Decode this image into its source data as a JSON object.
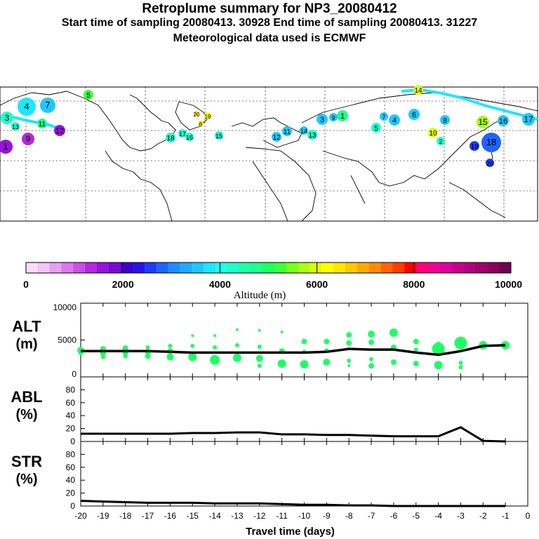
{
  "header": {
    "title": "Retroplume summary for NP3_20080412",
    "subtitle": "Start time of sampling 20080413. 30928     End time of sampling 20080413. 31227",
    "met": "Meteorological data used is ECMWF"
  },
  "colorbar": {
    "title": "Altitude (m)",
    "tick_labels": [
      "0",
      "2000",
      "4000",
      "6000",
      "8000",
      "10000"
    ],
    "colors": [
      "#fadcfa",
      "#f5c3f5",
      "#e6a0f0",
      "#dc78eb",
      "#c850e6",
      "#b428e1",
      "#9614dc",
      "#780ad7",
      "#3c00cd",
      "#2814e6",
      "#1e3cf5",
      "#1e64fa",
      "#1e8cff",
      "#1eaaff",
      "#1ec8ff",
      "#1ee6ff",
      "#1effe6",
      "#1effc8",
      "#1effaa",
      "#1eff8c",
      "#1eff64",
      "#3cff3c",
      "#78ff1e",
      "#aaff14",
      "#dcff0a",
      "#ffff00",
      "#ffe600",
      "#ffc800",
      "#ffaa00",
      "#ff8c00",
      "#ff6400",
      "#ff3c00",
      "#ff0000",
      "#ff0078",
      "#f00096",
      "#dc00a0",
      "#c8008c",
      "#b4007d",
      "#a0006e",
      "#8c005f",
      "#6e0050"
    ]
  },
  "map": {
    "point_labels": [
      "5",
      "4",
      "7",
      "3",
      "1",
      "9",
      "11",
      "12",
      "13",
      "14",
      "15",
      "16",
      "17",
      "18",
      "19",
      "20",
      "6",
      "8",
      "10",
      "2"
    ]
  },
  "chart_data": [
    {
      "type": "scatter",
      "name": "ALT",
      "ylabel": "ALT",
      "yunit": "(m)",
      "x": [
        -20,
        -19,
        -18,
        -17,
        -16,
        -15,
        -14,
        -13,
        -12,
        -11,
        -10,
        -9,
        -8,
        -7,
        -6,
        -5,
        -4,
        -3,
        -2,
        -1
      ],
      "ylim": [
        0,
        10000
      ],
      "ytick_labels": [
        "10000",
        "5000",
        "0"
      ],
      "line_values": [
        3500,
        3500,
        3500,
        3500,
        3400,
        3300,
        3300,
        3300,
        3300,
        3300,
        3300,
        3400,
        3800,
        3700,
        3700,
        3300,
        3000,
        3500,
        4200,
        4300
      ],
      "scatter": [
        {
          "x": -20,
          "y": 3600,
          "s": 5
        },
        {
          "x": -20,
          "y": 3200,
          "s": 3
        },
        {
          "x": -19,
          "y": 3800,
          "s": 4
        },
        {
          "x": -19,
          "y": 3200,
          "s": 4
        },
        {
          "x": -19,
          "y": 2700,
          "s": 3
        },
        {
          "x": -18,
          "y": 3900,
          "s": 4
        },
        {
          "x": -18,
          "y": 3300,
          "s": 4
        },
        {
          "x": -18,
          "y": 2800,
          "s": 3
        },
        {
          "x": -17,
          "y": 4000,
          "s": 3
        },
        {
          "x": -17,
          "y": 3400,
          "s": 4
        },
        {
          "x": -17,
          "y": 2800,
          "s": 4
        },
        {
          "x": -16,
          "y": 4200,
          "s": 3
        },
        {
          "x": -16,
          "y": 3500,
          "s": 4
        },
        {
          "x": -16,
          "y": 2700,
          "s": 5
        },
        {
          "x": -15,
          "y": 5600,
          "s": 2
        },
        {
          "x": -15,
          "y": 4200,
          "s": 3
        },
        {
          "x": -15,
          "y": 2700,
          "s": 6
        },
        {
          "x": -14,
          "y": 5600,
          "s": 2
        },
        {
          "x": -14,
          "y": 4000,
          "s": 3
        },
        {
          "x": -14,
          "y": 2300,
          "s": 7
        },
        {
          "x": -13,
          "y": 6400,
          "s": 2
        },
        {
          "x": -13,
          "y": 4300,
          "s": 3
        },
        {
          "x": -13,
          "y": 2600,
          "s": 6
        },
        {
          "x": -12,
          "y": 6300,
          "s": 2
        },
        {
          "x": -12,
          "y": 4100,
          "s": 3
        },
        {
          "x": -12,
          "y": 2500,
          "s": 5
        },
        {
          "x": -12,
          "y": 1500,
          "s": 3
        },
        {
          "x": -11,
          "y": 6100,
          "s": 2
        },
        {
          "x": -11,
          "y": 3500,
          "s": 4
        },
        {
          "x": -11,
          "y": 1800,
          "s": 6
        },
        {
          "x": -10,
          "y": 4800,
          "s": 4
        },
        {
          "x": -10,
          "y": 3400,
          "s": 3
        },
        {
          "x": -10,
          "y": 1700,
          "s": 6
        },
        {
          "x": -9,
          "y": 4800,
          "s": 4
        },
        {
          "x": -9,
          "y": 3600,
          "s": 3
        },
        {
          "x": -9,
          "y": 2000,
          "s": 5
        },
        {
          "x": -8,
          "y": 5700,
          "s": 4
        },
        {
          "x": -8,
          "y": 4600,
          "s": 4
        },
        {
          "x": -8,
          "y": 2200,
          "s": 3
        },
        {
          "x": -8,
          "y": 1500,
          "s": 2
        },
        {
          "x": -7,
          "y": 5800,
          "s": 5
        },
        {
          "x": -7,
          "y": 4700,
          "s": 4
        },
        {
          "x": -7,
          "y": 2400,
          "s": 3
        },
        {
          "x": -7,
          "y": 1500,
          "s": 4
        },
        {
          "x": -6,
          "y": 6000,
          "s": 6
        },
        {
          "x": -6,
          "y": 4000,
          "s": 4
        },
        {
          "x": -6,
          "y": 2000,
          "s": 4
        },
        {
          "x": -5,
          "y": 4800,
          "s": 4
        },
        {
          "x": -5,
          "y": 3700,
          "s": 3
        },
        {
          "x": -5,
          "y": 1800,
          "s": 4
        },
        {
          "x": -4,
          "y": 4500,
          "s": 3
        },
        {
          "x": -4,
          "y": 3800,
          "s": 9
        },
        {
          "x": -4,
          "y": 1600,
          "s": 6
        },
        {
          "x": -3,
          "y": 4600,
          "s": 9
        },
        {
          "x": -3,
          "y": 1900,
          "s": 3
        },
        {
          "x": -3,
          "y": 1300,
          "s": 3
        },
        {
          "x": -2,
          "y": 4300,
          "s": 6
        },
        {
          "x": -1,
          "y": 4300,
          "s": 6
        }
      ]
    },
    {
      "type": "line",
      "name": "ABL",
      "ylabel": "ABL",
      "yunit": "(%)",
      "x": [
        -20,
        -19,
        -18,
        -17,
        -16,
        -15,
        -14,
        -13,
        -12,
        -11,
        -10,
        -9,
        -8,
        -7,
        -6,
        -5,
        -4,
        -3,
        -2,
        -1
      ],
      "values": [
        12,
        12,
        12,
        12,
        12,
        13,
        13,
        14,
        14,
        11,
        11,
        10,
        10,
        9,
        8,
        8,
        8,
        22,
        1,
        0
      ],
      "ylim": [
        0,
        100
      ],
      "ytick_labels": [
        "80",
        "60",
        "40",
        "20",
        "0"
      ]
    },
    {
      "type": "line",
      "name": "STR",
      "ylabel": "STR",
      "yunit": "(%)",
      "x": [
        -20,
        -19,
        -18,
        -17,
        -16,
        -15,
        -14,
        -13,
        -12,
        -11,
        -10,
        -9,
        -8,
        -7,
        -6,
        -5,
        -4,
        -3,
        -2,
        -1
      ],
      "values": [
        8,
        7,
        6,
        5,
        5,
        5,
        4,
        4,
        4,
        3,
        2,
        2,
        1,
        1,
        0,
        0,
        0,
        0,
        0,
        0
      ],
      "ylim": [
        0,
        100
      ],
      "ytick_labels": [
        "80",
        "60",
        "40",
        "20",
        "0"
      ],
      "xlabel": "Travel time (days)",
      "xtick_labels": [
        "-20",
        "-19",
        "-18",
        "-17",
        "-16",
        "-15",
        "-14",
        "-13",
        "-12",
        "-11",
        "-10",
        "-9",
        "-8",
        "-7",
        "-6",
        "-5",
        "-4",
        "-3",
        "-2",
        "-1",
        "0"
      ]
    }
  ]
}
